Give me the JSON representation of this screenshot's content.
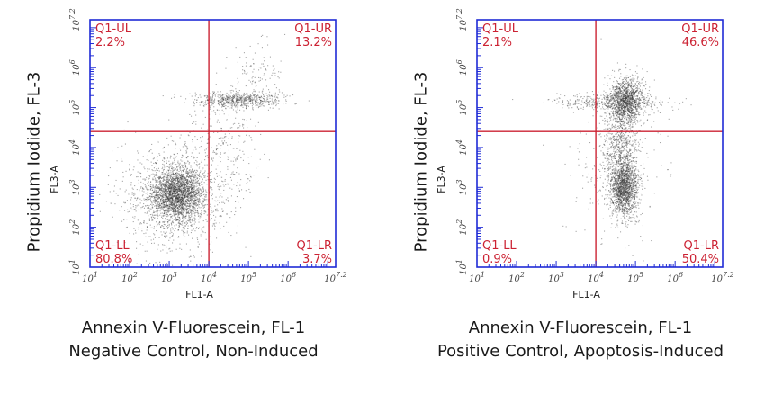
{
  "charts": [
    {
      "outer_ylabel": "Propidium Iodide, FL-3",
      "caption_line1": "Annexin V-Fluorescein, FL-1",
      "caption_line2": "Negative Control, Non-Induced"
    },
    {
      "outer_ylabel": "Propidium Iodide, FL-3",
      "caption_line1": "Annexin V-Fluorescein, FL-1",
      "caption_line2": "Positive Control, Apoptosis-Induced"
    }
  ],
  "chart_data": [
    {
      "type": "scatter",
      "xlabel": "FL1-A",
      "ylabel": "FL3-A",
      "scale": "log",
      "xlim": [
        1,
        7.2
      ],
      "ylim": [
        1,
        7.2
      ],
      "xticks": [
        "10^1",
        "10^2",
        "10^3",
        "10^4",
        "10^5",
        "10^6",
        "10^7.2"
      ],
      "yticks": [
        "10^1",
        "10^2",
        "10^3",
        "10^4",
        "10^5",
        "10^6",
        "10^7.2"
      ],
      "gate_x": 4.0,
      "gate_y": 4.4,
      "quadrants": [
        {
          "name": "Q1-UL",
          "percent": "2.2%"
        },
        {
          "name": "Q1-UR",
          "percent": "13.2%"
        },
        {
          "name": "Q1-LL",
          "percent": "80.8%"
        },
        {
          "name": "Q1-LR",
          "percent": "3.7%"
        }
      ],
      "populations": [
        {
          "cx": 3.2,
          "cy": 2.85,
          "sx": 0.32,
          "sy": 0.32,
          "n": 2200
        },
        {
          "cx": 3.1,
          "cy": 2.75,
          "sx": 0.7,
          "sy": 0.65,
          "n": 1200
        },
        {
          "cx": 4.7,
          "cy": 5.2,
          "sx": 0.55,
          "sy": 0.1,
          "n": 650
        },
        {
          "cx": 4.4,
          "cy": 4.0,
          "sx": 0.45,
          "sy": 0.7,
          "n": 260
        },
        {
          "cx": 5.2,
          "cy": 5.9,
          "sx": 0.35,
          "sy": 0.35,
          "n": 100
        }
      ],
      "colors": {
        "border": "#1f2bd6",
        "gate": "#cc2233",
        "dots": "#3a3a3a"
      }
    },
    {
      "type": "scatter",
      "xlabel": "FL1-A",
      "ylabel": "FL3-A",
      "scale": "log",
      "xlim": [
        1,
        7.2
      ],
      "ylim": [
        1,
        7.2
      ],
      "xticks": [
        "10^1",
        "10^2",
        "10^3",
        "10^4",
        "10^5",
        "10^6",
        "10^7.2"
      ],
      "yticks": [
        "10^1",
        "10^2",
        "10^3",
        "10^4",
        "10^5",
        "10^6",
        "10^7.2"
      ],
      "gate_x": 4.0,
      "gate_y": 4.4,
      "quadrants": [
        {
          "name": "Q1-UL",
          "percent": "2.1%"
        },
        {
          "name": "Q1-UR",
          "percent": "46.6%"
        },
        {
          "name": "Q1-LL",
          "percent": "0.9%"
        },
        {
          "name": "Q1-LR",
          "percent": "50.4%"
        }
      ],
      "populations": [
        {
          "cx": 4.7,
          "cy": 3.0,
          "sx": 0.18,
          "sy": 0.35,
          "n": 1500
        },
        {
          "cx": 4.75,
          "cy": 5.2,
          "sx": 0.22,
          "sy": 0.28,
          "n": 1300
        },
        {
          "cx": 4.6,
          "cy": 4.1,
          "sx": 0.22,
          "sy": 0.6,
          "n": 700
        },
        {
          "cx": 4.3,
          "cy": 5.15,
          "sx": 0.75,
          "sy": 0.1,
          "n": 350
        },
        {
          "cx": 4.5,
          "cy": 3.5,
          "sx": 0.6,
          "sy": 0.9,
          "n": 250
        }
      ],
      "colors": {
        "border": "#1f2bd6",
        "gate": "#cc2233",
        "dots": "#3a3a3a"
      }
    }
  ]
}
